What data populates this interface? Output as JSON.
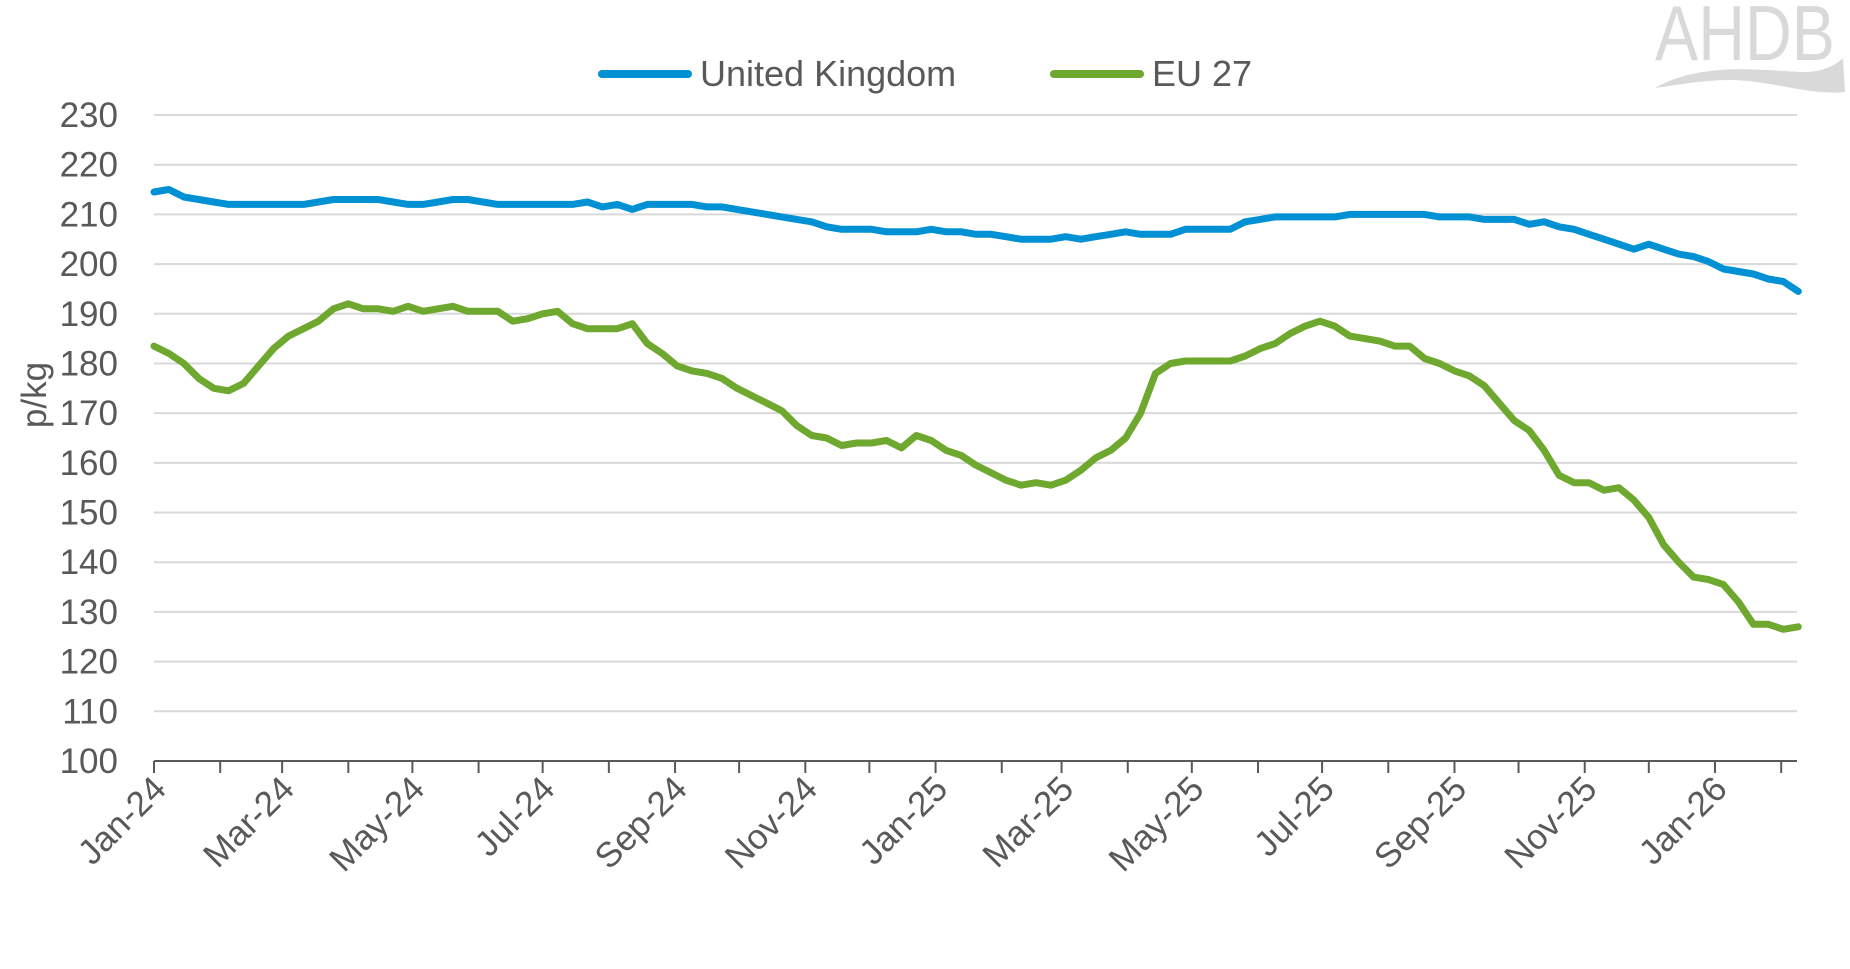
{
  "chart_data": {
    "type": "line",
    "title": "",
    "xlabel": "",
    "ylabel": "p/kg",
    "ylim": [
      100,
      230
    ],
    "yticks": [
      100,
      110,
      120,
      130,
      140,
      150,
      160,
      170,
      180,
      190,
      200,
      210,
      220,
      230
    ],
    "xlim": [
      "2024-01-01",
      "2026-02-12"
    ],
    "xtick_labels": [
      "Jan-24",
      "Mar-24",
      "May-24",
      "Jul-24",
      "Sep-24",
      "Nov-24",
      "Jan-25",
      "Mar-25",
      "May-25",
      "Jul-25",
      "Sep-25",
      "Nov-25",
      "Jan-26"
    ],
    "xtick_dates": [
      "2024-01-01",
      "2024-03-01",
      "2024-05-01",
      "2024-07-01",
      "2024-09-01",
      "2024-11-01",
      "2025-01-01",
      "2025-03-01",
      "2025-05-01",
      "2025-07-01",
      "2025-09-01",
      "2025-11-01",
      "2026-01-01"
    ],
    "grid": "horizontal",
    "legend_position": "top",
    "x": [
      "2024-01-01",
      "2024-01-08",
      "2024-01-15",
      "2024-01-22",
      "2024-01-29",
      "2024-02-05",
      "2024-02-12",
      "2024-02-19",
      "2024-02-26",
      "2024-03-04",
      "2024-03-11",
      "2024-03-18",
      "2024-03-25",
      "2024-04-01",
      "2024-04-08",
      "2024-04-15",
      "2024-04-22",
      "2024-04-29",
      "2024-05-06",
      "2024-05-13",
      "2024-05-20",
      "2024-05-27",
      "2024-06-03",
      "2024-06-10",
      "2024-06-17",
      "2024-06-24",
      "2024-07-01",
      "2024-07-08",
      "2024-07-15",
      "2024-07-22",
      "2024-07-29",
      "2024-08-05",
      "2024-08-12",
      "2024-08-19",
      "2024-08-26",
      "2024-09-02",
      "2024-09-09",
      "2024-09-16",
      "2024-09-23",
      "2024-09-30",
      "2024-10-07",
      "2024-10-14",
      "2024-10-21",
      "2024-10-28",
      "2024-11-04",
      "2024-11-11",
      "2024-11-18",
      "2024-11-25",
      "2024-12-02",
      "2024-12-09",
      "2024-12-16",
      "2024-12-23",
      "2024-12-30",
      "2025-01-06",
      "2025-01-13",
      "2025-01-20",
      "2025-01-27",
      "2025-02-03",
      "2025-02-10",
      "2025-02-17",
      "2025-02-24",
      "2025-03-03",
      "2025-03-10",
      "2025-03-17",
      "2025-03-24",
      "2025-03-31",
      "2025-04-07",
      "2025-04-14",
      "2025-04-21",
      "2025-04-28",
      "2025-05-05",
      "2025-05-12",
      "2025-05-19",
      "2025-05-26",
      "2025-06-02",
      "2025-06-09",
      "2025-06-16",
      "2025-06-23",
      "2025-06-30",
      "2025-07-07",
      "2025-07-14",
      "2025-07-21",
      "2025-07-28",
      "2025-08-04",
      "2025-08-11",
      "2025-08-18",
      "2025-08-25",
      "2025-09-01",
      "2025-09-08",
      "2025-09-15",
      "2025-09-22",
      "2025-09-29",
      "2025-10-06",
      "2025-10-13",
      "2025-10-20",
      "2025-10-27",
      "2025-11-03",
      "2025-11-10",
      "2025-11-17",
      "2025-11-24",
      "2025-12-01",
      "2025-12-08",
      "2025-12-15",
      "2025-12-22",
      "2025-12-29",
      "2026-01-05",
      "2026-01-12",
      "2026-01-19",
      "2026-01-26",
      "2026-02-02",
      "2026-02-09"
    ],
    "series": [
      {
        "name": "United Kingdom",
        "color": "#0090d4",
        "values": [
          214.5,
          215,
          213.5,
          213,
          212.5,
          212,
          212,
          212,
          212,
          212,
          212,
          212.5,
          213,
          213,
          213,
          213,
          212.5,
          212,
          212,
          212.5,
          213,
          213,
          212.5,
          212,
          212,
          212,
          212,
          212,
          212,
          212.5,
          211.5,
          212,
          211,
          212,
          212,
          212,
          212,
          211.5,
          211.5,
          211,
          210.5,
          210,
          209.5,
          209,
          208.5,
          207.5,
          207,
          207,
          207,
          206.5,
          206.5,
          206.5,
          207,
          206.5,
          206.5,
          206,
          206,
          205.5,
          205,
          205,
          205,
          205.5,
          205,
          205.5,
          206,
          206.5,
          206,
          206,
          206,
          207,
          207,
          207,
          207,
          208.5,
          209,
          209.5,
          209.5,
          209.5,
          209.5,
          209.5,
          210,
          210,
          210,
          210,
          210,
          210,
          209.5,
          209.5,
          209.5,
          209,
          209,
          209,
          208,
          208.5,
          207.5,
          207,
          206,
          205,
          204,
          203,
          204,
          203,
          202,
          201.5,
          200.5,
          199,
          198.5,
          198,
          197,
          196.5,
          194.5
        ]
      },
      {
        "name": "EU 27",
        "color": "#6fa82f",
        "values": [
          183.5,
          182,
          180,
          177,
          175,
          174.5,
          176,
          179.5,
          183,
          185.5,
          187,
          188.5,
          191,
          192,
          191,
          191,
          190.5,
          191.5,
          190.5,
          191,
          191.5,
          190.5,
          190.5,
          190.5,
          188.5,
          189,
          190,
          190.5,
          188,
          187,
          187,
          187,
          188,
          184,
          182,
          179.5,
          178.5,
          178,
          177,
          175,
          173.5,
          172,
          170.5,
          167.5,
          165.5,
          165,
          163.5,
          164,
          164,
          164.5,
          163,
          165.5,
          164.5,
          162.5,
          161.5,
          159.5,
          158,
          156.5,
          155.5,
          156,
          155.5,
          156.5,
          158.5,
          161,
          162.5,
          165,
          170,
          178,
          180,
          180.5,
          180.5,
          180.5,
          180.5,
          181.5,
          183,
          184,
          186,
          187.5,
          188.5,
          187.5,
          185.5,
          185,
          184.5,
          183.5,
          183.5,
          181,
          180,
          178.5,
          177.5,
          175.5,
          172,
          168.5,
          166.5,
          162.5,
          157.5,
          156,
          156,
          154.5,
          155,
          152.5,
          149,
          143.5,
          140,
          137,
          136.5,
          135.5,
          132,
          127.5,
          127.5,
          126.5,
          127
        ]
      }
    ]
  },
  "logo": {
    "text": "AHDB",
    "color": "#d9d9d9"
  },
  "colors": {
    "text": "#595959",
    "grid": "#d9d9d9",
    "axis": "#595959"
  }
}
